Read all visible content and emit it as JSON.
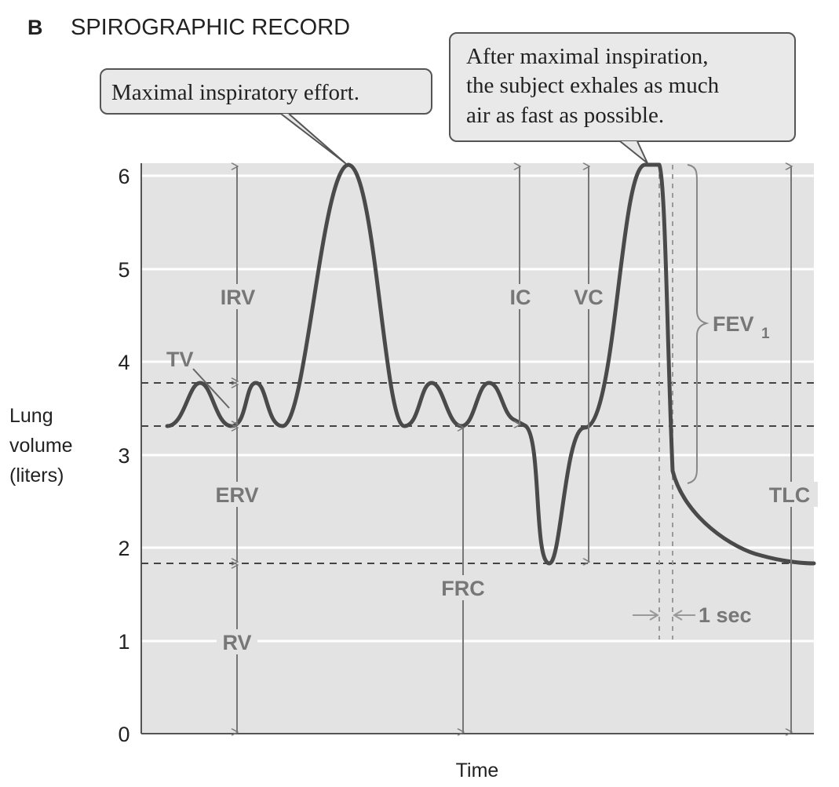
{
  "header": {
    "panel_letter": "B",
    "title": "SPIROGRAPHIC RECORD"
  },
  "axes": {
    "y_label_lines": [
      "Lung",
      "volume",
      "(liters)"
    ],
    "x_label": "Time",
    "y_ticks": [
      "0",
      "1",
      "2",
      "3",
      "4",
      "5",
      "6"
    ]
  },
  "callouts": {
    "inspiratory": {
      "lines": [
        "Maximal inspiratory effort."
      ]
    },
    "expiratory": {
      "lines": [
        "After maximal inspiration,",
        "the subject exhales as much",
        "air as fast as possible."
      ]
    }
  },
  "volume_labels": {
    "irv": "IRV",
    "tv": "TV",
    "erv": "ERV",
    "rv": "RV",
    "frc": "FRC",
    "ic": "IC",
    "vc": "VC",
    "tlc": "TLC",
    "fev_main": "FEV",
    "fev_sub": "1",
    "one_sec": "1 sec"
  },
  "colors": {
    "plot_background": "#e3e3e3",
    "gridline": "#ffffff",
    "trace": "#4a4a4a",
    "annotation_gray": "#8a8a8a",
    "callout_fill": "#e9e9e9"
  },
  "chart_data": {
    "type": "line",
    "x_axis": "Time",
    "y_axis": "Lung volume (liters)",
    "ylim": [
      0,
      6
    ],
    "reference_levels_liters": {
      "tidal_top": 3.75,
      "frc": 3.3,
      "residual_volume": 1.8,
      "total_lung_capacity": 6.1
    },
    "grid": true,
    "legend": "none"
  }
}
